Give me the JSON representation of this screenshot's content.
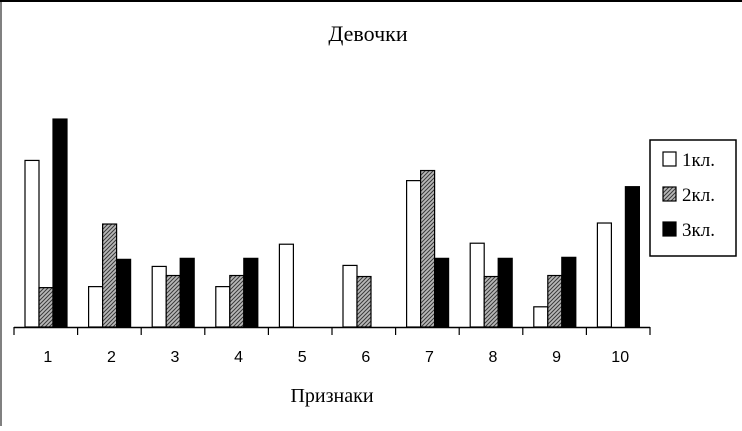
{
  "chart_data": {
    "type": "bar",
    "title": "Девочки",
    "xlabel": "Признаки",
    "ylabel": "",
    "categories": [
      "1",
      "2",
      "3",
      "4",
      "5",
      "6",
      "7",
      "8",
      "9",
      "10"
    ],
    "ylim": [
      0,
      210
    ],
    "grid": false,
    "legend_position": "right",
    "series": [
      {
        "name": "1кл.",
        "values": [
          165,
          40,
          60,
          40,
          82,
          61,
          145,
          83,
          20,
          103
        ],
        "pattern": "white",
        "color": "#ffffff"
      },
      {
        "name": "2кл.",
        "values": [
          39,
          102,
          51,
          51,
          0,
          50,
          155,
          50,
          51,
          0
        ],
        "pattern": "hatched",
        "color": "#9a9a9a"
      },
      {
        "name": "3кл.",
        "values": [
          206,
          67,
          68,
          68,
          0,
          0,
          68,
          68,
          69,
          139
        ],
        "pattern": "black",
        "color": "#000000"
      }
    ]
  }
}
